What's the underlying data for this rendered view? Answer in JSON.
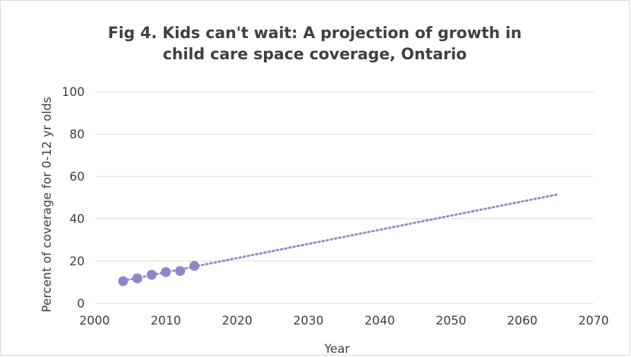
{
  "chart_data": {
    "type": "scatter",
    "title_line1": "Fig 4. Kids can't wait: A projection of growth in",
    "title_line2": "child care space coverage, Ontario",
    "xlabel": "Year",
    "ylabel": "Percent of coverage for 0-12 yr olds",
    "xlim": [
      2000,
      2070
    ],
    "ylim": [
      0,
      100
    ],
    "xticks": [
      2000,
      2010,
      2020,
      2030,
      2040,
      2050,
      2060,
      2070
    ],
    "yticks": [
      0,
      20,
      40,
      60,
      80,
      100
    ],
    "grid": "horizontal",
    "legend": "none",
    "series": [
      {
        "x": [
          2004,
          2006,
          2008,
          2010,
          2012,
          2014
        ],
        "y": [
          10.5,
          11.8,
          13.5,
          14.8,
          15.3,
          17.7
        ]
      }
    ],
    "trendline": {
      "style": "dotted",
      "x": [
        2004,
        2065
      ],
      "y": [
        10.7,
        51.5
      ]
    },
    "colors": {
      "marker": "#8e86cc",
      "trend": "#8e86cc",
      "grid": "#d9d9d9",
      "text": "#404040"
    }
  }
}
